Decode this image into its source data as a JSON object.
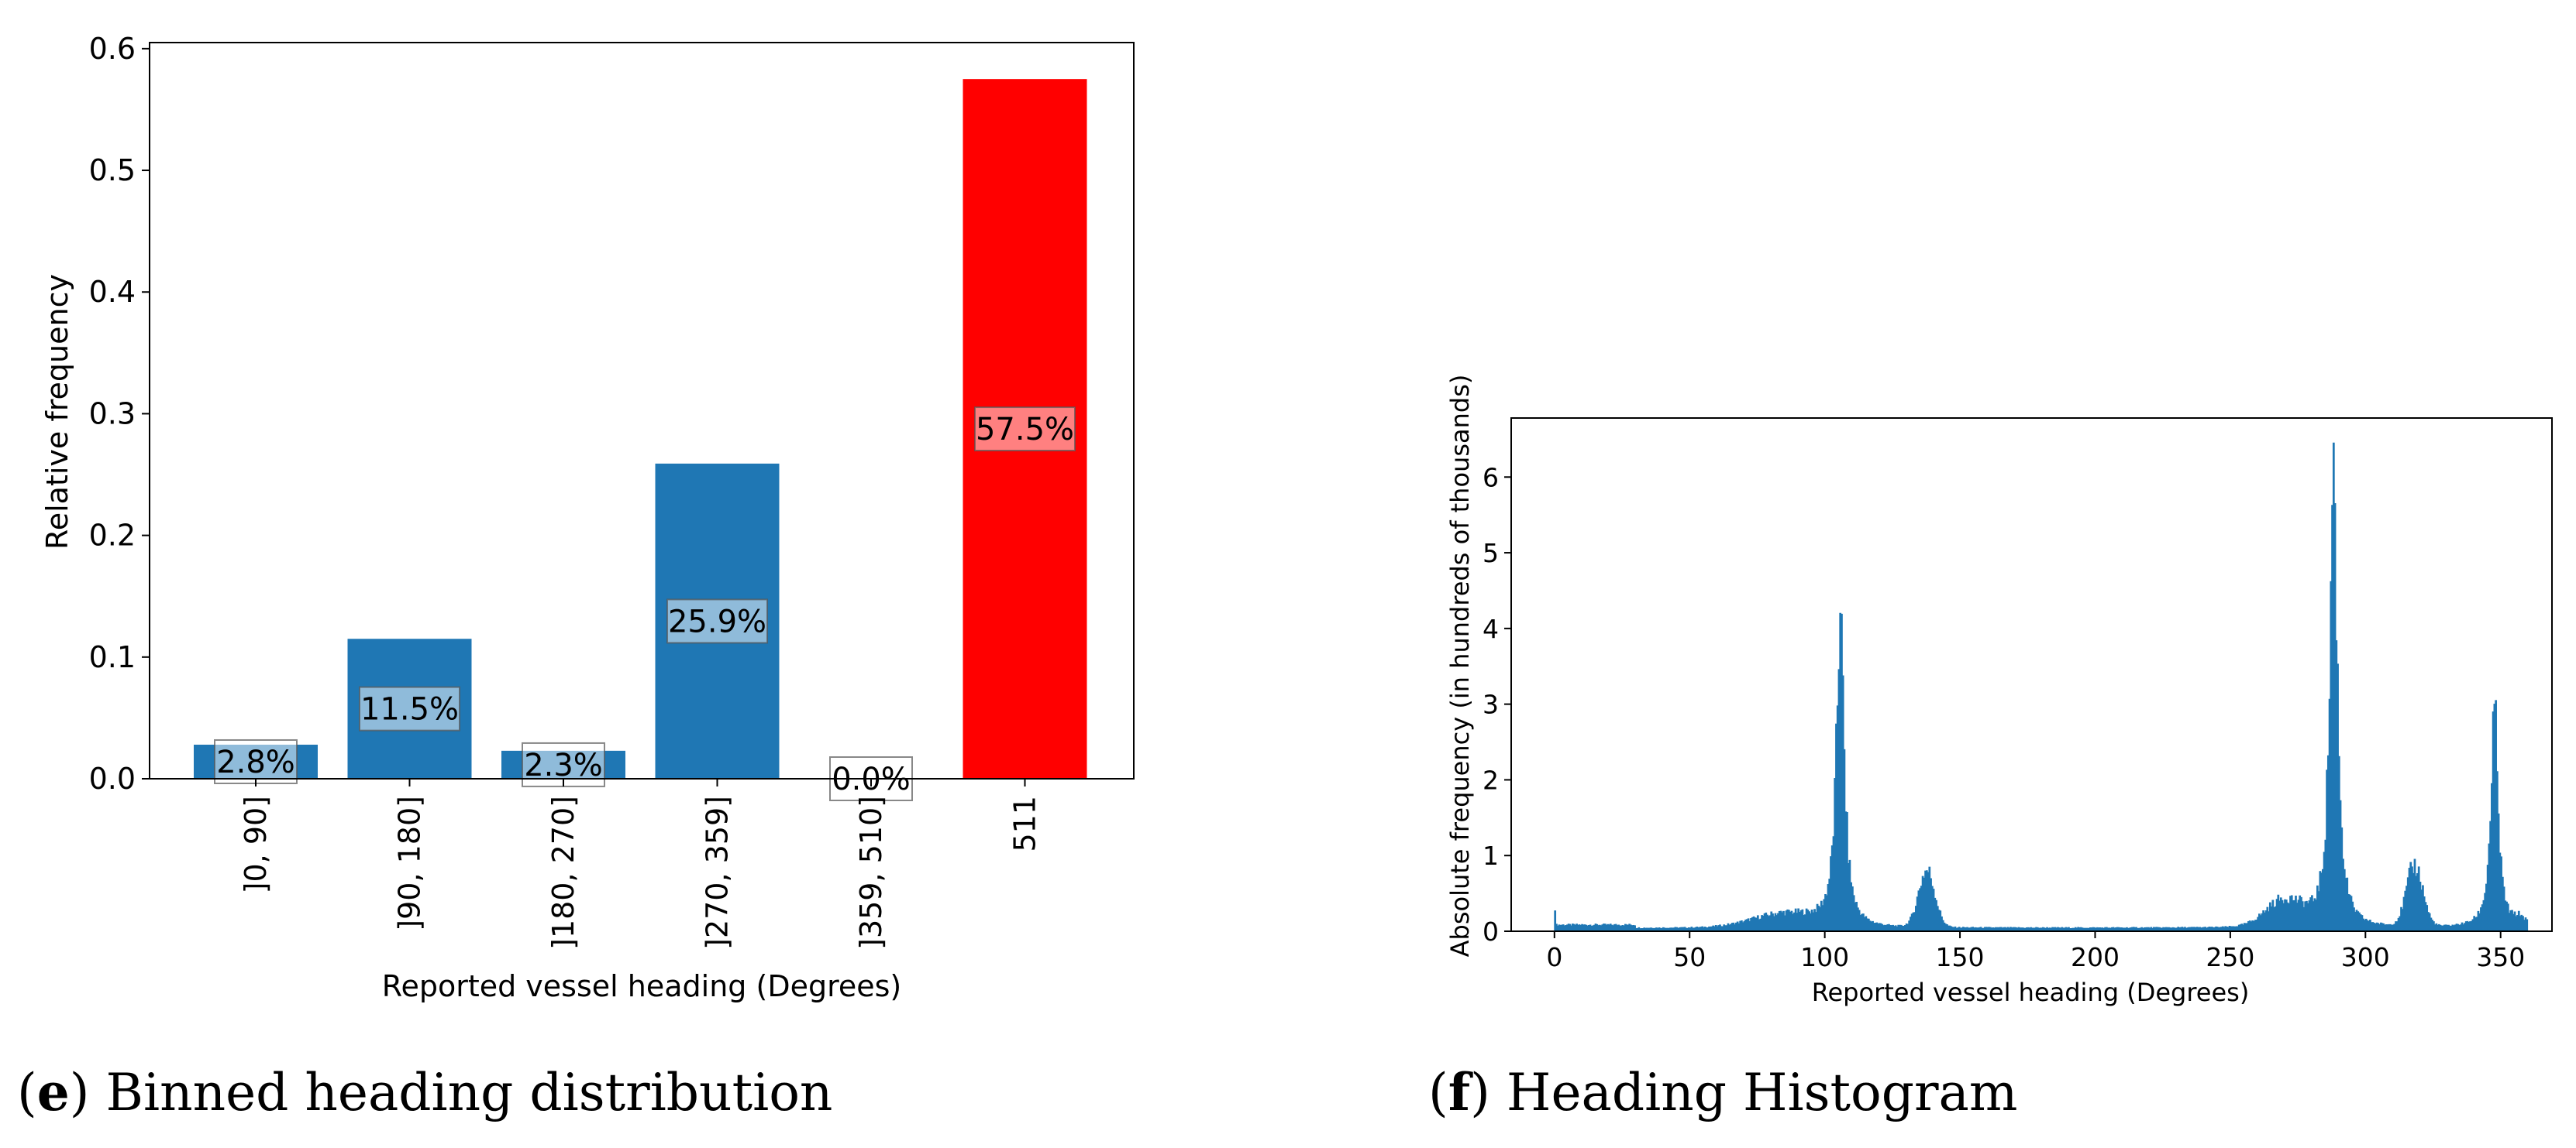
{
  "chart_data": [
    {
      "type": "bar",
      "title": "",
      "xlabel": "Reported vessel heading (Degrees)",
      "ylabel": "Relative frequency",
      "ylim": [
        0,
        0.605
      ],
      "yticks": [
        0.0,
        0.1,
        0.2,
        0.3,
        0.4,
        0.5,
        0.6
      ],
      "ytick_labels": [
        "0.0",
        "0.1",
        "0.2",
        "0.3",
        "0.4",
        "0.5",
        "0.6"
      ],
      "categories": [
        "]0, 90]",
        "]90, 180]",
        "]180, 270]",
        "]270, 359]",
        "]359, 510]",
        "511"
      ],
      "values": [
        0.028,
        0.115,
        0.023,
        0.259,
        0.0,
        0.575
      ],
      "labels": [
        "2.8%",
        "11.5%",
        "2.3%",
        "25.9%",
        "0.0%",
        "57.5%"
      ],
      "colors": [
        "#1f77b4",
        "#1f77b4",
        "#1f77b4",
        "#1f77b4",
        "#1f77b4",
        "#ff0000"
      ],
      "caption_letter": "e",
      "caption": "Binned heading distribution"
    },
    {
      "type": "histogram",
      "title": "",
      "xlabel": "Reported vessel heading (Degrees)",
      "ylabel": "Absolute frequency (in hundreds of thousands)",
      "xlim": [
        -16,
        369
      ],
      "ylim": [
        0,
        6.78
      ],
      "xticks": [
        0,
        50,
        100,
        150,
        200,
        250,
        300,
        350
      ],
      "yticks": [
        0,
        1,
        2,
        3,
        4,
        5,
        6
      ],
      "color": "#1f77b4",
      "peaks": [
        {
          "x": 0,
          "y": 0.27
        },
        {
          "x": 105.5,
          "y": 4.2
        },
        {
          "x": 137.5,
          "y": 0.82
        },
        {
          "x": 288,
          "y": 6.45
        },
        {
          "x": 318,
          "y": 0.88
        },
        {
          "x": 347.5,
          "y": 3.0
        }
      ],
      "caption_letter": "f",
      "caption": "Heading Histogram"
    }
  ]
}
